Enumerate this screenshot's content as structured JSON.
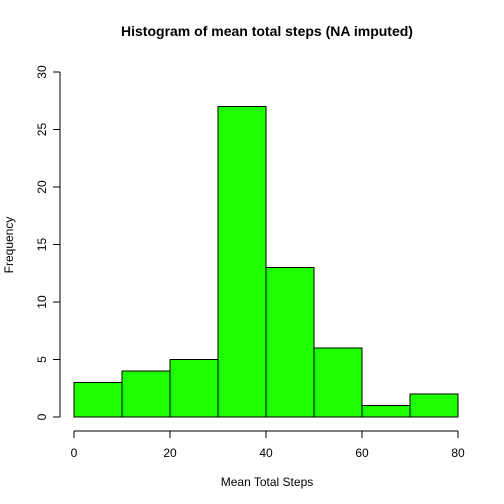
{
  "chart_data": {
    "type": "bar",
    "title": "Histogram of mean total steps (NA imputed)",
    "xlabel": "Mean Total Steps",
    "ylabel": "Frequency",
    "bins": [
      [
        0,
        10
      ],
      [
        10,
        20
      ],
      [
        20,
        30
      ],
      [
        30,
        40
      ],
      [
        40,
        50
      ],
      [
        50,
        60
      ],
      [
        60,
        70
      ],
      [
        70,
        80
      ]
    ],
    "values": [
      3,
      4,
      5,
      27,
      13,
      6,
      1,
      2
    ],
    "xlim": [
      0,
      80
    ],
    "ylim": [
      0,
      30
    ],
    "xticks": [
      0,
      20,
      40,
      60,
      80
    ],
    "yticks": [
      0,
      5,
      10,
      15,
      20,
      25,
      30
    ],
    "grid": false,
    "bar_color": "#1EFF00"
  }
}
